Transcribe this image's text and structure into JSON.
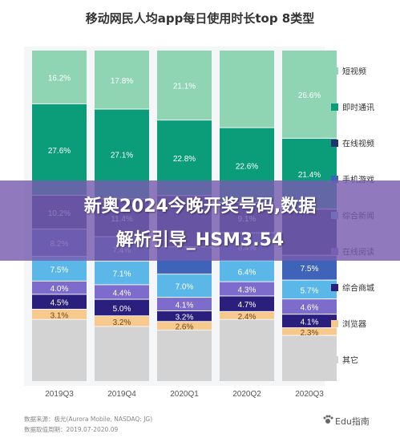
{
  "chart_data": {
    "type": "bar",
    "stacked": true,
    "title": "移动网民人均app每日使用时长top 8类型",
    "categories": [
      "2019Q3",
      "2019Q4",
      "2020Q1",
      "2020Q2",
      "2020Q3"
    ],
    "series": [
      {
        "name": "其它",
        "color": "#d3d3d3",
        "values": [
          null,
          null,
          null,
          null,
          null
        ],
        "labels": [
          "",
          "",
          "",
          "",
          ""
        ]
      },
      {
        "name": "浏览器",
        "color": "#f8c98c",
        "values": [
          3.1,
          3.2,
          2.6,
          2.4,
          2.3
        ],
        "labels": [
          "3.1%",
          "3.2%",
          "2.6%",
          "2.4%",
          "2.3%"
        ]
      },
      {
        "name": "综合商城",
        "color": "#2a1f7c",
        "values": [
          4.5,
          5.0,
          3.2,
          4.7,
          4.1
        ],
        "labels": [
          "4.5%",
          "5.0%",
          "3.2%",
          "4.7%",
          "4.1%"
        ]
      },
      {
        "name": "在线阅读",
        "color": "#7d6ccc",
        "values": [
          4.0,
          4.4,
          4.1,
          4.3,
          4.6
        ],
        "labels": [
          "4.0%",
          "4.4%",
          "4.1%",
          "4.3%",
          "4.6%"
        ]
      },
      {
        "name": "综合新闻",
        "color": "#5ab7e8",
        "values": [
          7.5,
          7.1,
          7.0,
          6.4,
          5.7
        ],
        "labels": [
          "7.5%",
          "7.1%",
          "7.0%",
          "6.4%",
          "5.7%"
        ]
      },
      {
        "name": "手机游戏",
        "color": "#3f63b8",
        "values": [
          8.2,
          7.4,
          8.2,
          8.4,
          7.5
        ],
        "labels": [
          "8.2%",
          "7.4%",
          "",
          "8.4%",
          "7.5%"
        ]
      },
      {
        "name": "在线视频",
        "color": "#1e3470",
        "values": [
          10.2,
          11.4,
          null,
          9.1,
          null
        ],
        "labels": [
          "10.2%",
          "11.4%",
          "",
          "9.1%",
          ""
        ]
      },
      {
        "name": "即时通讯",
        "color": "#0b9d79",
        "values": [
          27.6,
          27.1,
          22.8,
          22.6,
          21.4
        ],
        "labels": [
          "27.6%",
          "27.1%",
          "22.8%",
          "22.6%",
          "21.4%"
        ]
      },
      {
        "name": "短视频",
        "color": "#8fd5b4",
        "values": [
          16.2,
          17.8,
          21.1,
          23.4,
          26.6
        ],
        "labels": [
          "16.2%",
          "17.8%",
          "21.1%",
          "",
          "26.6%"
        ]
      }
    ],
    "legend_order": [
      "短视频",
      "即时通讯",
      "在线视频",
      "手机游戏",
      "综合新闻",
      "在线阅读",
      "综合商城",
      "浏览器",
      "其它"
    ],
    "legend_position": "right",
    "grid": false
  },
  "overlay": {
    "line1": "新奥2024今晚开奖号码,数据",
    "line2": "解析引导_HSM3.54"
  },
  "source": {
    "line1": "数据来源：极光(Aurora Mobile, NASDAQ: JG)",
    "line2": "数据取值周期：2019.07-2020.09"
  },
  "watermark": "Edu指南"
}
